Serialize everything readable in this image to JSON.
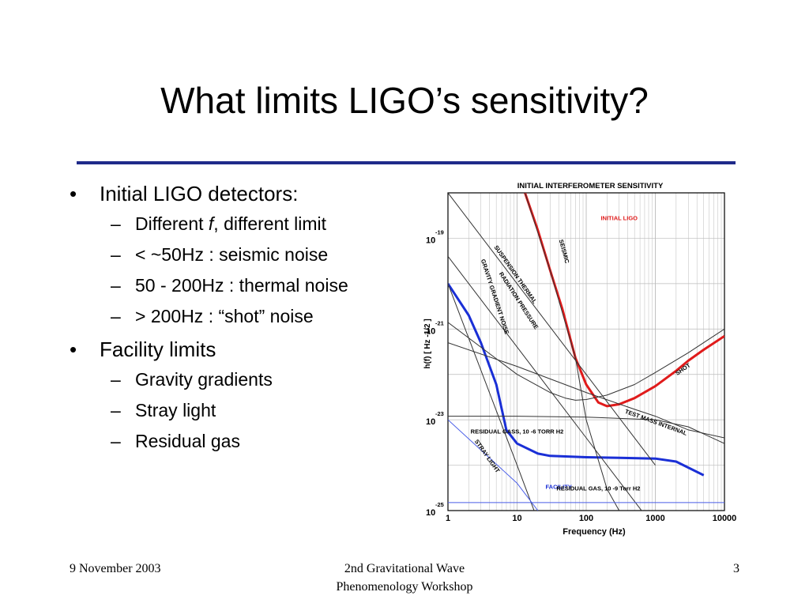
{
  "slide": {
    "title": "What limits LIGO’s sensitivity?"
  },
  "bullets": [
    {
      "text": "Initial LIGO detectors:",
      "sub": [
        {
          "pre": "Different ",
          "italic": "f",
          "post": ", different limit"
        },
        {
          "text": "< ~50Hz : seismic noise"
        },
        {
          "text": "50 - 200Hz : thermal noise"
        },
        {
          "text": "> 200Hz  : “shot” noise"
        }
      ]
    },
    {
      "text": "Facility limits",
      "sub": [
        {
          "text": "Gravity gradients"
        },
        {
          "text": "Stray light"
        },
        {
          "text": "Residual gas"
        }
      ]
    }
  ],
  "footer": {
    "date": "9 November 2003",
    "event_line1": "2nd Gravitational Wave",
    "event_line2": "Phenomenology Workshop",
    "page": "3"
  },
  "chart_data": {
    "type": "line",
    "title": "INITIAL INTERFEROMETER SENSITIVITY",
    "xlabel": "Frequency (Hz)",
    "ylabel": "h(f) [ Hz -1/2 ]",
    "x_scale": "log",
    "y_scale": "log",
    "xlim": [
      1,
      10000
    ],
    "ylim": [
      1e-25,
      1e-18
    ],
    "x_ticks": [
      "1",
      "10",
      "100",
      "1000",
      "10000"
    ],
    "y_ticks": [
      {
        "base": "10",
        "exp": "-19",
        "value": 1e-19
      },
      {
        "base": "10",
        "exp": "-21",
        "value": 1e-21
      },
      {
        "base": "10",
        "exp": "-23",
        "value": 1e-23
      },
      {
        "base": "10",
        "exp": "-25",
        "value": 1e-25
      }
    ],
    "grid": true,
    "colors": {
      "initial_ligo": "#e01b1b",
      "facility": "#1a2fd6",
      "noise": "#333333",
      "stray": "#4a5ee8"
    },
    "series": [
      {
        "name": "INITIAL LIGO",
        "color": "#e01b1b",
        "width": 3,
        "x": [
          13,
          20,
          30,
          45,
          70,
          100,
          150,
          200,
          300,
          500,
          1000,
          2000,
          3000,
          5000,
          10000
        ],
        "y": [
          1e-18,
          1.5e-19,
          2e-20,
          2.8e-21,
          2.3e-22,
          6e-23,
          2.4e-23,
          2e-23,
          2.2e-23,
          3e-23,
          5.5e-23,
          1.2e-22,
          2e-22,
          3.5e-22,
          7e-22
        ]
      },
      {
        "name": "FACILITY",
        "color": "#1a2fd6",
        "width": 3,
        "x": [
          1,
          2,
          3,
          5,
          7,
          10,
          20,
          30,
          100,
          300,
          1000,
          2000,
          5000
        ],
        "y": [
          1e-20,
          2e-21,
          5e-22,
          6e-23,
          6e-24,
          3e-24,
          1.8e-24,
          1.6e-24,
          1.5e-24,
          1.45e-24,
          1.4e-24,
          1.2e-24,
          6e-25
        ]
      },
      {
        "name": "SEISMIC",
        "color": "#333333",
        "width": 1,
        "x": [
          13,
          30,
          70,
          100,
          200,
          300
        ],
        "y": [
          1e-18,
          2e-20,
          2.3e-22,
          1e-23,
          3e-25,
          1e-25
        ]
      },
      {
        "name": "SUSPENSION THERMAL",
        "color": "#333333",
        "width": 1,
        "x": [
          1,
          10,
          100,
          1000
        ],
        "y": [
          1e-18,
          1e-20,
          1e-22,
          1e-24
        ]
      },
      {
        "name": "RADIATION PRESSURE",
        "color": "#333333",
        "width": 1,
        "x": [
          1,
          10,
          100,
          1000
        ],
        "y": [
          4e-20,
          4e-22,
          4e-24,
          4e-26
        ]
      },
      {
        "name": "GRAVITY GRADIENT NOISE",
        "color": "#333333",
        "width": 1,
        "x": [
          1,
          10,
          20
        ],
        "y": [
          1e-20,
          1e-24,
          6e-26
        ]
      },
      {
        "name": "SHOT",
        "color": "#333333",
        "width": 1,
        "x": [
          1,
          10,
          30,
          50,
          70,
          100,
          200,
          500,
          1000,
          3000,
          10000
        ],
        "y": [
          1.4e-21,
          1e-22,
          4e-23,
          3e-23,
          2.7e-23,
          2.8e-23,
          3.5e-23,
          6e-23,
          1.1e-22,
          3e-22,
          1e-21
        ]
      },
      {
        "name": "TEST MASS INTERNAL",
        "color": "#333333",
        "width": 1,
        "x": [
          1,
          10,
          100,
          500,
          1000,
          3000,
          10000
        ],
        "y": [
          5e-22,
          1.5e-22,
          4e-23,
          1.7e-23,
          1.2e-23,
          6e-24,
          4e-24
        ]
      },
      {
        "name": "RESIDUAL GASS, 10 -6 TORR H2",
        "color": "#333333",
        "width": 1,
        "x": [
          1,
          10,
          100,
          1000,
          3000,
          10000
        ],
        "y": [
          1.2e-23,
          1.2e-23,
          1.15e-23,
          1e-23,
          7e-24,
          3e-24
        ]
      },
      {
        "name": "RESIDUAL GAS, 10 -9 Torr H2",
        "color": "#4a5ee8",
        "width": 1,
        "x": [
          1,
          10000
        ],
        "y": [
          1.5e-25,
          1.5e-25
        ]
      },
      {
        "name": "STRAY LIGHT",
        "color": "#4a5ee8",
        "width": 1,
        "x": [
          1,
          10,
          20
        ],
        "y": [
          1e-23,
          4e-25,
          1e-25
        ]
      }
    ],
    "annotations": [
      {
        "text": "INITIAL LIGO",
        "color": "#e01b1b",
        "x": 300,
        "y": 2.5e-19,
        "rotate": 0
      },
      {
        "text": "FACILITY",
        "color": "#1a2fd6",
        "x": 40,
        "y": 3e-25,
        "rotate": 0
      },
      {
        "text": "SEISMIC",
        "color": "#000000",
        "x": 45,
        "y": 5e-20,
        "rotate": 75
      },
      {
        "text": "SUSPENSION THERMAL",
        "color": "#000000",
        "x": 9,
        "y": 1.5e-20,
        "rotate": 55
      },
      {
        "text": "RADIATION PRESSURE",
        "color": "#000000",
        "x": 10,
        "y": 4e-21,
        "rotate": 57
      },
      {
        "text": "GRAVITY GRADIENT NOISE",
        "color": "#000000",
        "x": 4.5,
        "y": 5e-21,
        "rotate": 72
      },
      {
        "text": "SHOT",
        "color": "#000000",
        "x": 2600,
        "y": 1.2e-22,
        "rotate": -35
      },
      {
        "text": "TEST MASS INTERNAL",
        "color": "#000000",
        "x": 1000,
        "y": 8e-24,
        "rotate": 20
      },
      {
        "text": "RESIDUAL GASS, 10 -6 TORR H2",
        "color": "#000000",
        "x": 10,
        "y": 5e-24,
        "rotate": 0
      },
      {
        "text": "RESIDUAL GAS, 10 -9 Torr H2",
        "color": "#000000",
        "x": 150,
        "y": 2.8e-25,
        "rotate": 0
      },
      {
        "text": "STRAY LIGHT",
        "color": "#000000",
        "x": 3.5,
        "y": 1.5e-24,
        "rotate": 55
      }
    ]
  }
}
